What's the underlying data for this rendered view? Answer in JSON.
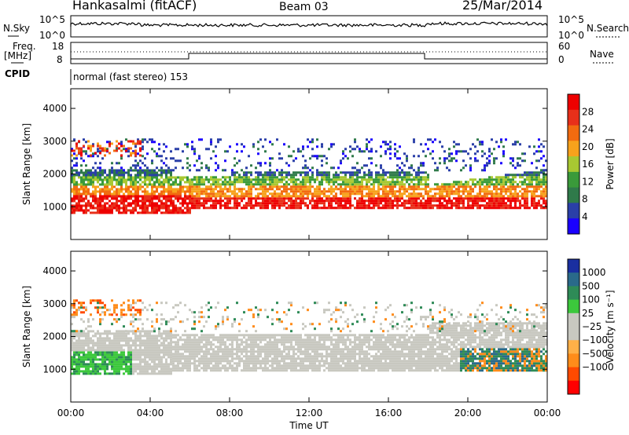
{
  "header": {
    "title": "Hankasalmi (fitACF)",
    "beam": "Beam 03",
    "date": "25/Mar/2014"
  },
  "strip": {
    "nsky_label": "N.Sky",
    "nsearch_label": "N.Search",
    "nsky_tick_top": "10^5",
    "nsky_tick_bottom": "10^0",
    "nsearch_tick_top": "10^5",
    "nsearch_tick_bottom": "10^0",
    "freq_label_1": "Freq.",
    "freq_label_2": "[MHz]",
    "freq_tick_top": "18",
    "freq_tick_bottom": "8",
    "nave_label": "Nave",
    "nave_tick_top": "60",
    "nave_tick_bottom": "0",
    "cpid_label": "CPID",
    "cpid_text": "normal (fast stereo) 153"
  },
  "colors": {
    "power": [
      "#1a00ff",
      "#2a3fa8",
      "#2f7a4a",
      "#3a9a3a",
      "#a8c832",
      "#f7a21c",
      "#f26b10",
      "#e8301a",
      "#ee0000"
    ],
    "velocity": [
      "#ff0000",
      "#ff4a00",
      "#ff8c1a",
      "#ffb048",
      "#c8c8c0",
      "#c8c8c0",
      "#3cc83c",
      "#2e8b57",
      "#2a6a8a",
      "#1a2fa0"
    ]
  },
  "chart_data": [
    {
      "type": "heatmap",
      "title": "",
      "xlabel": "Time UT",
      "ylabel": "Slant Range [km]",
      "x_ticks": [
        "00:00",
        "04:00",
        "08:00",
        "12:00",
        "16:00",
        "20:00",
        "00:00"
      ],
      "x_range_hours": [
        0,
        24
      ],
      "y_ticks": [
        1000,
        2000,
        3000,
        4000
      ],
      "ylim": [
        0,
        4600
      ],
      "colorbar_label": "Power [dB]",
      "colorbar_ticks": [
        4,
        8,
        12,
        16,
        20,
        24,
        28
      ],
      "colorbar_range": [
        0,
        32
      ]
    },
    {
      "type": "heatmap",
      "title": "",
      "xlabel": "Time UT",
      "ylabel": "Slant Range [km]",
      "x_ticks": [
        "00:00",
        "04:00",
        "08:00",
        "12:00",
        "16:00",
        "20:00",
        "00:00"
      ],
      "x_range_hours": [
        0,
        24
      ],
      "y_ticks": [
        1000,
        2000,
        3000,
        4000
      ],
      "ylim": [
        0,
        4600
      ],
      "colorbar_label": "Velocity [m s⁻¹]",
      "colorbar_ticks": [
        "1000",
        "500",
        "100",
        "25",
        "−25",
        "−100",
        "−500",
        "−1000"
      ]
    }
  ]
}
